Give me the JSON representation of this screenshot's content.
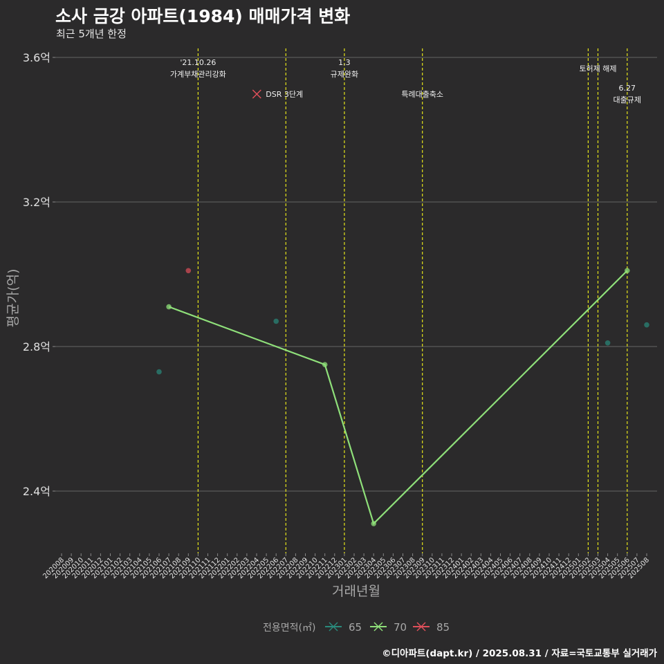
{
  "title": "소사 금강 아파트(1984) 매매가격 변화",
  "subtitle": "최근 5개년 한정",
  "caption": "©디아파트(dapt.kr) / 2025.08.31 / 자료=국토교통부 실거래가",
  "colors": {
    "background": "#2b2a2b",
    "grid": "#5a5a5a",
    "event_line": "#e6e619",
    "s65": "#2a8a7c",
    "s70": "#8fe07a",
    "s85": "#e04f5a"
  },
  "chart_data": {
    "type": "line",
    "title": "소사 금강 아파트(1984) 매매가격 변화",
    "subtitle": "최근 5개년 한정",
    "xlabel": "거래년월",
    "ylabel": "평균가(억)",
    "y_ticks": [
      2.4,
      2.8,
      3.2,
      3.6
    ],
    "y_tick_labels": [
      "2.4억",
      "2.8억",
      "3.2억",
      "3.6억"
    ],
    "ylim": [
      2.25,
      3.68
    ],
    "categories": [
      "202008",
      "202009",
      "202010",
      "202011",
      "202012",
      "202101",
      "202102",
      "202103",
      "202104",
      "202105",
      "202106",
      "202107",
      "202108",
      "202109",
      "202110",
      "202111",
      "202112",
      "202201",
      "202202",
      "202203",
      "202204",
      "202205",
      "202206",
      "202207",
      "202208",
      "202209",
      "202210",
      "202211",
      "202212",
      "202301",
      "202302",
      "202303",
      "202304",
      "202305",
      "202306",
      "202307",
      "202308",
      "202309",
      "202310",
      "202311",
      "202312",
      "202401",
      "202402",
      "202403",
      "202404",
      "202405",
      "202406",
      "202407",
      "202408",
      "202409",
      "202410",
      "202411",
      "202412",
      "202501",
      "202502",
      "202503",
      "202504",
      "202505",
      "202506",
      "202507",
      "202508"
    ],
    "legend_title": "전용면적(㎡)",
    "legend_position": "bottom",
    "series": [
      {
        "name": "65",
        "color": "#2a8a7c",
        "line": false,
        "points": [
          {
            "x": "202106",
            "y": 2.73
          },
          {
            "x": "202206",
            "y": 2.87
          },
          {
            "x": "202504",
            "y": 2.81
          },
          {
            "x": "202508",
            "y": 2.86
          }
        ]
      },
      {
        "name": "70",
        "color": "#8fe07a",
        "line": true,
        "points": [
          {
            "x": "202107",
            "y": 2.91
          },
          {
            "x": "202211",
            "y": 2.75
          },
          {
            "x": "202304",
            "y": 2.31
          },
          {
            "x": "202506",
            "y": 3.01
          }
        ]
      },
      {
        "name": "85",
        "color": "#e04f5a",
        "line": false,
        "points": [
          {
            "x": "202109",
            "y": 3.01
          }
        ]
      }
    ],
    "events": [
      {
        "x": "202110",
        "lines": [
          "'21.10.26",
          "가계부채관리강화"
        ],
        "level": 1,
        "anchor": "middle"
      },
      {
        "x": "202207",
        "lines": [
          "DSR 3단계"
        ],
        "level": 3,
        "anchor": "end",
        "marker": true
      },
      {
        "x": "202301",
        "lines": [
          "1.3",
          "규제완화"
        ],
        "level": 1,
        "anchor": "middle"
      },
      {
        "x": "202309",
        "lines": [
          "특례대출축소"
        ],
        "level": 3,
        "anchor": "middle"
      },
      {
        "x": "202502",
        "lines": [],
        "level": 0,
        "anchor": "middle"
      },
      {
        "x": "202503",
        "lines": [
          "토허제 해제"
        ],
        "level": 2,
        "anchor": "middle"
      },
      {
        "x": "202506",
        "lines": [
          "6.27",
          "대출규제"
        ],
        "level": 4,
        "anchor": "middle"
      }
    ]
  }
}
